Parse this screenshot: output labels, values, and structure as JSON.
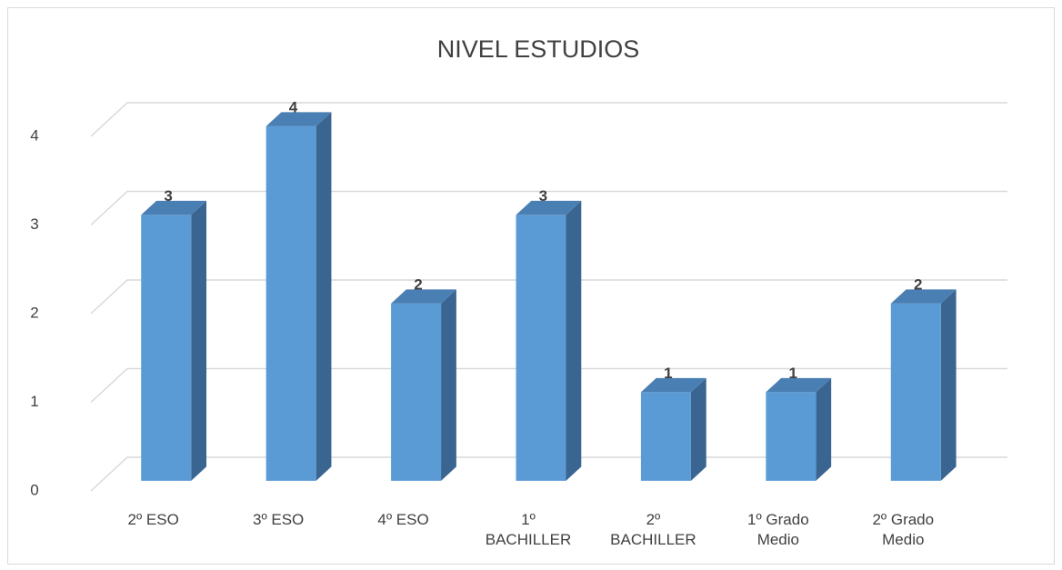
{
  "chart_data": {
    "type": "bar3d",
    "title": "NIVEL ESTUDIOS",
    "categories": [
      "2º ESO",
      "3º ESO",
      "4º ESO",
      "1º BACHILLER",
      "2º BACHILLER",
      "1º Grado Medio",
      "2º Grado Medio"
    ],
    "values": [
      3,
      4,
      2,
      3,
      1,
      1,
      2
    ],
    "color": "#5b9bd5",
    "ylim": [
      0,
      4
    ],
    "yticks": [
      0,
      1,
      2,
      3,
      4
    ],
    "grid": true
  }
}
